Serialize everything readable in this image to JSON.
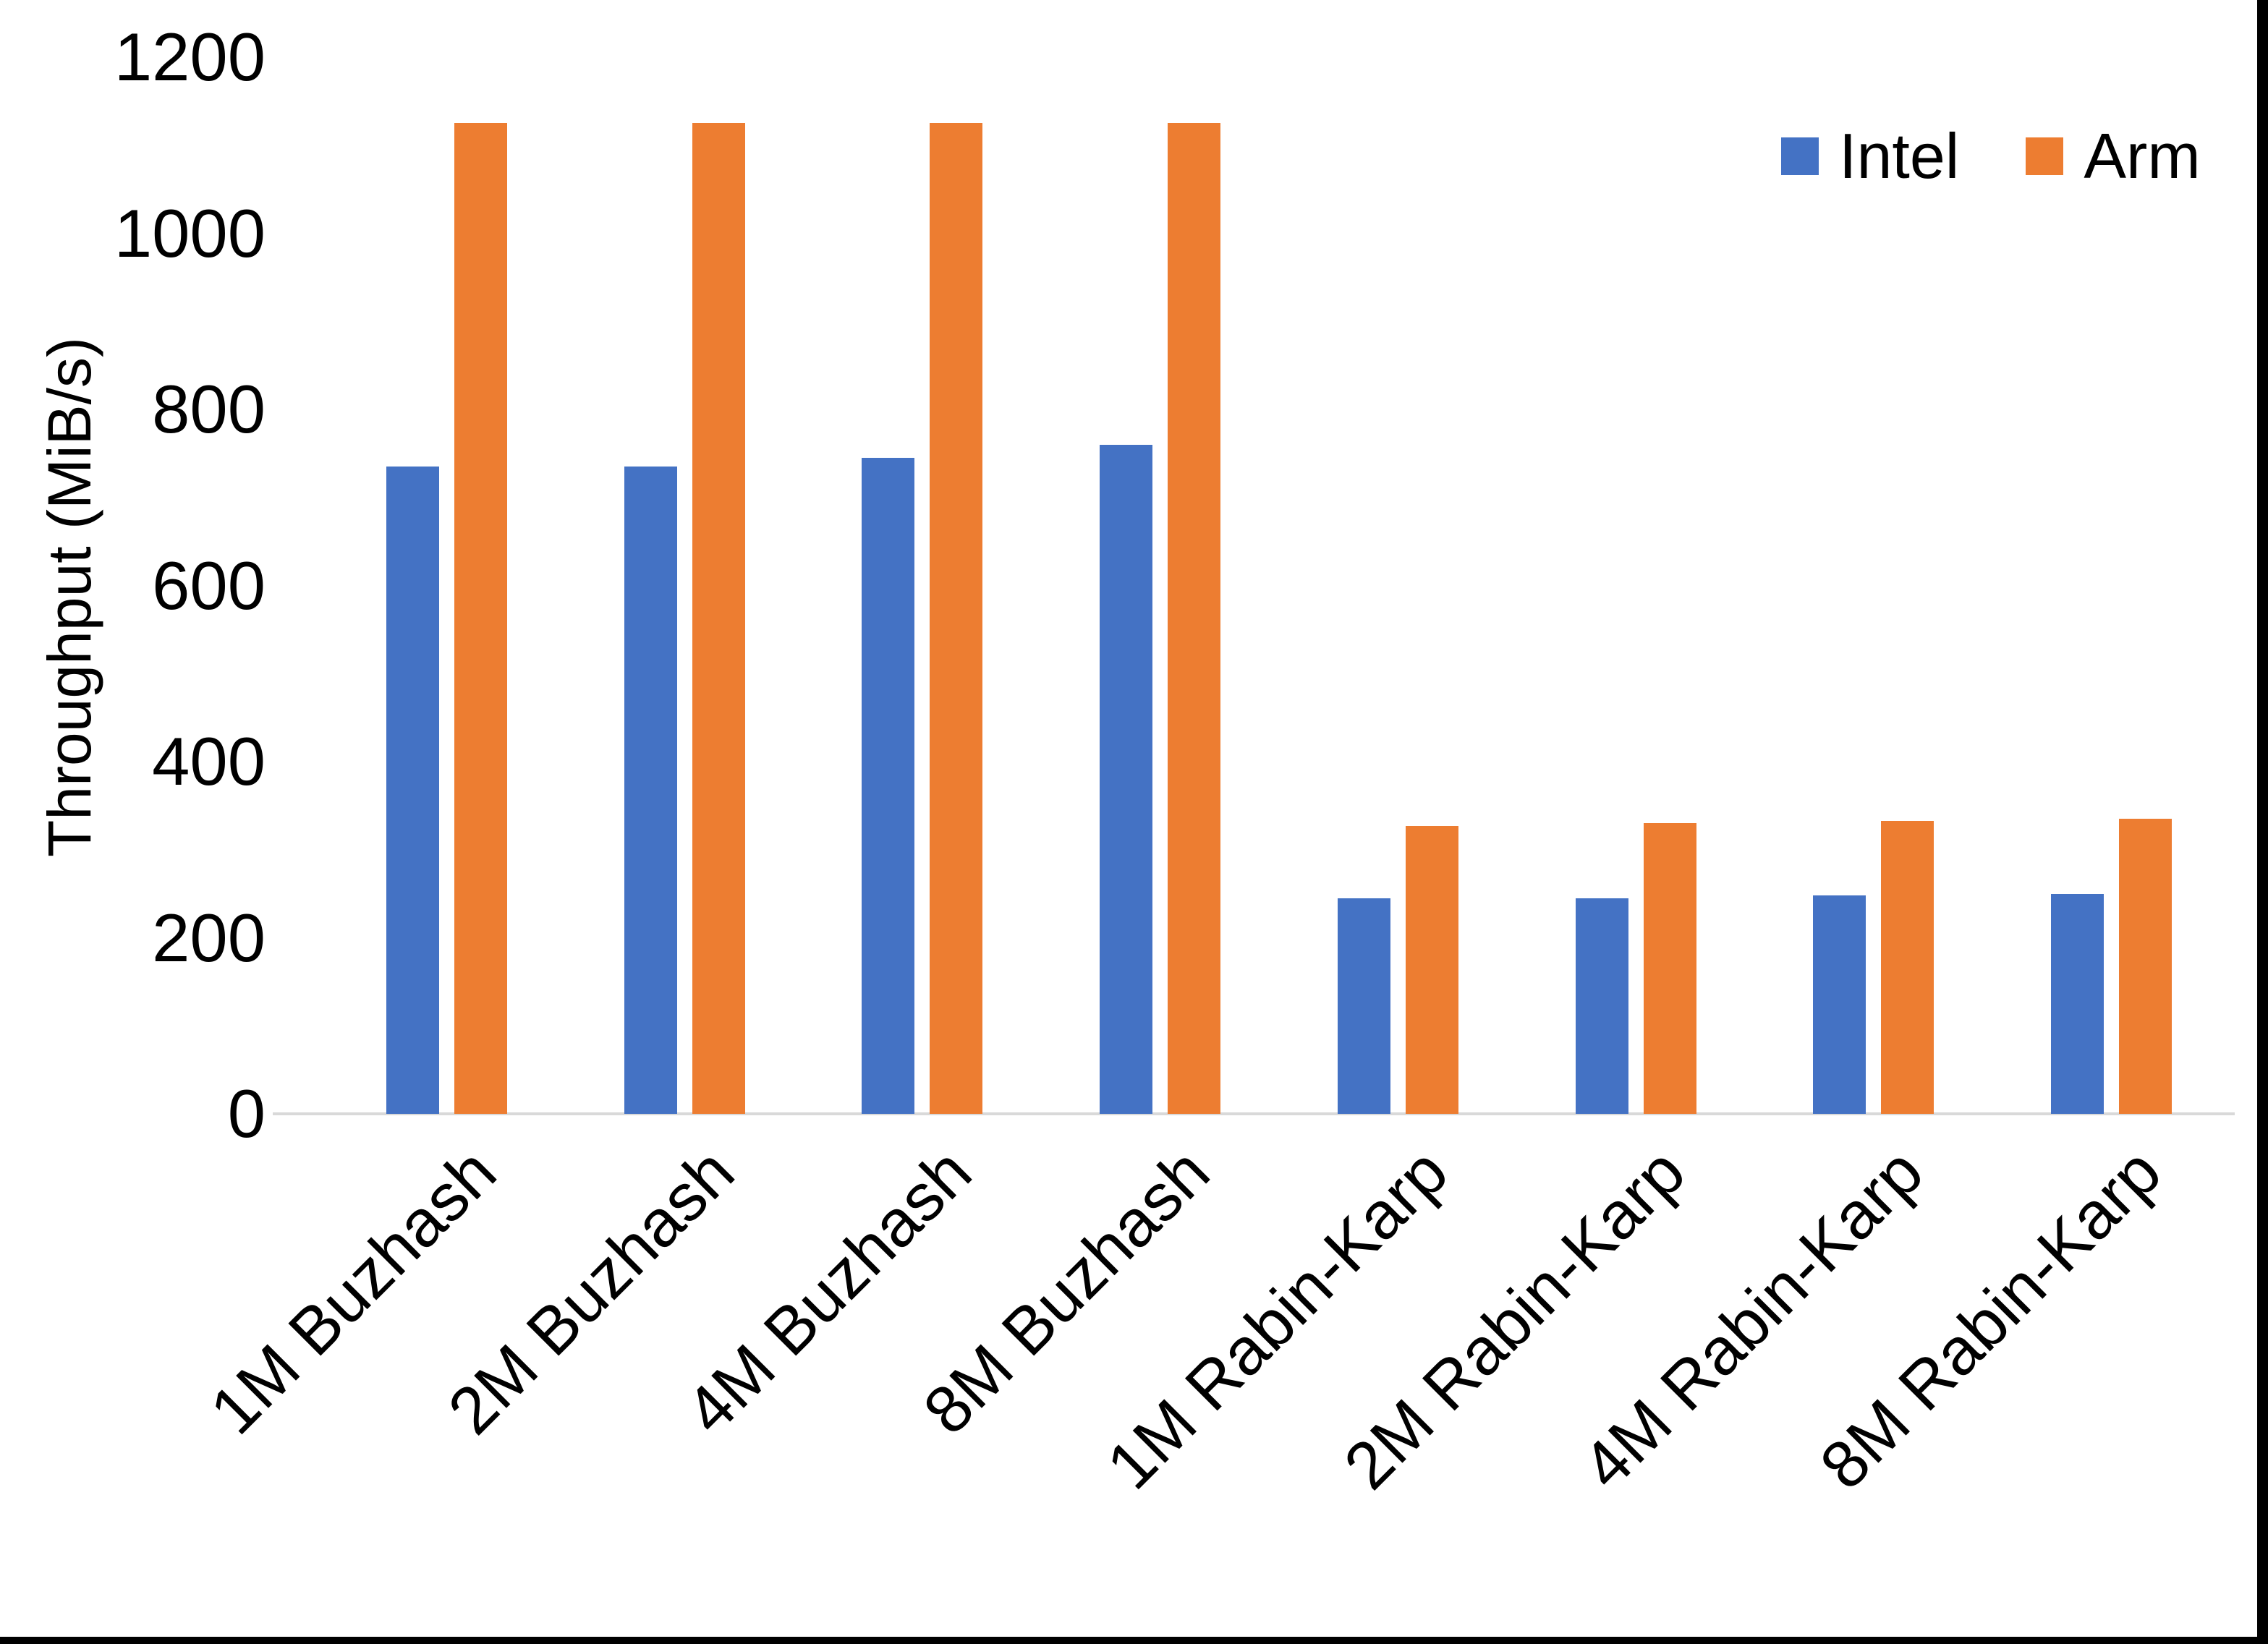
{
  "chart_data": {
    "type": "bar",
    "title": "",
    "xlabel": "",
    "ylabel": "Throughput (MiB/s)",
    "ylim": [
      0,
      1200
    ],
    "ytick_step": 200,
    "grid": false,
    "legend_position": "top-right",
    "categories": [
      "1M Buzhash",
      "2M Buzhash",
      "4M Buzhash",
      "8M Buzhash",
      "1M Rabin-Karp",
      "2M Rabin-Karp",
      "4M Rabin-Karp",
      "8M Rabin-Karp"
    ],
    "series": [
      {
        "name": "Intel",
        "color": "#4472C4",
        "values": [
          735,
          735,
          745,
          760,
          245,
          245,
          248,
          250
        ]
      },
      {
        "name": "Arm",
        "color": "#ED7D31",
        "values": [
          1125,
          1125,
          1125,
          1125,
          327,
          330,
          333,
          335
        ]
      }
    ]
  },
  "axes": {
    "y_title": "Throughput (MiB/s)",
    "y_tick_labels": [
      "1200",
      "1000",
      "800",
      "600",
      "400",
      "200",
      "0"
    ]
  },
  "colors": {
    "background": "#FFFFFF",
    "axis_line": "#D9D9D9",
    "text": "#000000",
    "intel_bar": "#4472C4",
    "arm_bar": "#ED7D31",
    "screen_edge": "#000000"
  }
}
